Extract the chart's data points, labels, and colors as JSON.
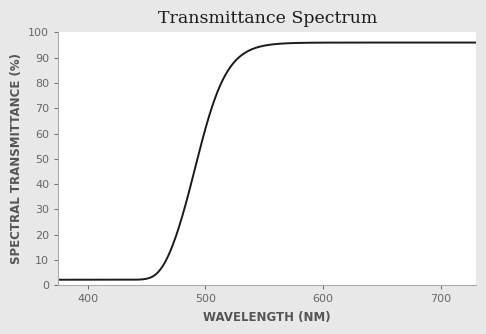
{
  "title": "Transmittance Spectrum",
  "xlabel": "Wavelength (nm)",
  "ylabel": "Spectral Transmittance (%)",
  "xlim": [
    375,
    730
  ],
  "ylim": [
    0,
    100
  ],
  "xticks": [
    400,
    500,
    600,
    700
  ],
  "yticks": [
    0,
    10,
    20,
    30,
    40,
    50,
    60,
    70,
    80,
    90,
    100
  ],
  "line_color": "#1a1a1a",
  "line_width": 1.4,
  "background_color": "#e8e8e8",
  "plot_bg_color": "#ffffff",
  "title_fontsize": 12.5,
  "axis_label_fontsize": 8.5,
  "tick_fontsize": 8,
  "curve_params": {
    "x_start": 375,
    "x_end": 730,
    "flat_until": 460,
    "flat_value": 2.2,
    "inflection": 492,
    "steepness": 0.075,
    "max_val": 96.0,
    "min_val": 0.5
  }
}
